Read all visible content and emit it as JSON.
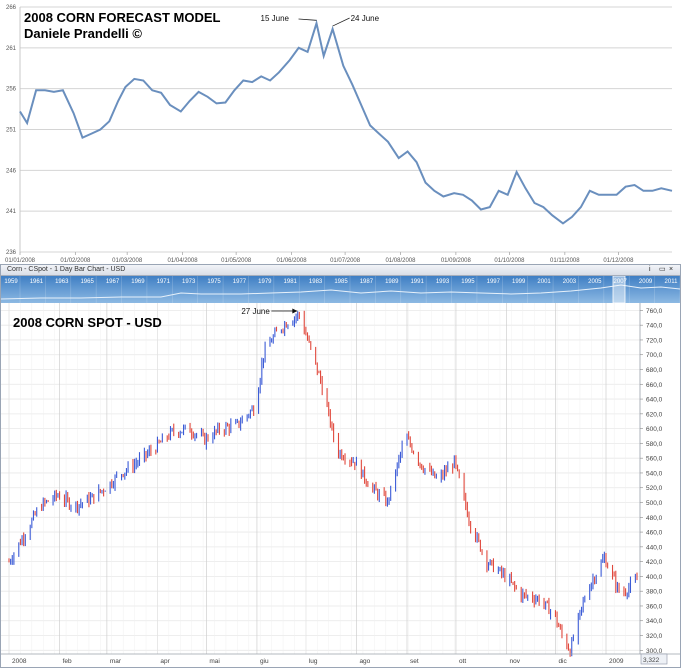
{
  "chart_data": [
    {
      "type": "line",
      "title": "2008 CORN FORECAST MODEL",
      "subtitle": "Daniele Prandelli ©",
      "ylim": [
        236,
        266
      ],
      "yticks": [
        236,
        241,
        246,
        251,
        256,
        261,
        266
      ],
      "xticks": [
        "01/01/2008",
        "01/02/2008",
        "01/03/2008",
        "01/04/2008",
        "01/05/2008",
        "01/06/2008",
        "01/07/2008",
        "01/08/2008",
        "01/09/2008",
        "01/10/2008",
        "01/11/2008",
        "01/12/2008"
      ],
      "line_color": "#6a8fbe",
      "grid": true,
      "annotations": [
        {
          "text": "15 June",
          "x": "15/06/2008",
          "y": 264.0
        },
        {
          "text": "24 June",
          "x": "24/06/2008",
          "y": 263.3
        }
      ],
      "series": [
        {
          "x": [
            "01/01/2008",
            "05/01/2008",
            "10/01/2008",
            "15/01/2008",
            "20/01/2008",
            "25/01/2008",
            "31/01/2008",
            "05/02/2008",
            "10/02/2008",
            "15/02/2008",
            "20/02/2008",
            "25/02/2008",
            "29/02/2008",
            "05/03/2008",
            "10/03/2008",
            "15/03/2008",
            "20/03/2008",
            "25/03/2008",
            "31/03/2008",
            "05/04/2008",
            "10/04/2008",
            "15/04/2008",
            "20/04/2008",
            "25/04/2008",
            "30/04/2008",
            "05/05/2008",
            "10/05/2008",
            "15/05/2008",
            "20/05/2008",
            "25/05/2008",
            "31/05/2008",
            "05/06/2008",
            "10/06/2008",
            "15/06/2008",
            "19/06/2008",
            "24/06/2008",
            "30/06/2008",
            "05/07/2008",
            "10/07/2008",
            "15/07/2008",
            "20/07/2008",
            "25/07/2008",
            "31/07/2008",
            "05/08/2008",
            "10/08/2008",
            "15/08/2008",
            "20/08/2008",
            "25/08/2008",
            "31/08/2008",
            "05/09/2008",
            "10/09/2008",
            "15/09/2008",
            "20/09/2008",
            "25/09/2008",
            "30/09/2008",
            "05/10/2008",
            "10/10/2008",
            "15/10/2008",
            "20/10/2008",
            "25/10/2008",
            "31/10/2008",
            "05/11/2008",
            "10/11/2008",
            "15/11/2008",
            "20/11/2008",
            "25/11/2008",
            "30/11/2008",
            "05/12/2008",
            "10/12/2008",
            "15/12/2008",
            "20/12/2008",
            "25/12/2008",
            "31/12/2008"
          ],
          "values": [
            253.2,
            251.8,
            255.8,
            255.8,
            255.6,
            255.8,
            253.0,
            250.0,
            250.5,
            251.0,
            252.0,
            254.5,
            256.2,
            257.2,
            257.0,
            255.8,
            255.5,
            254.0,
            253.2,
            254.5,
            255.6,
            255.0,
            254.2,
            254.3,
            255.8,
            257.0,
            256.8,
            257.5,
            257.0,
            258.0,
            259.5,
            261.0,
            260.5,
            264.0,
            260.0,
            263.3,
            258.8,
            256.5,
            254.0,
            251.5,
            250.5,
            249.5,
            247.5,
            248.3,
            247.0,
            244.5,
            243.5,
            242.8,
            243.2,
            243.0,
            242.3,
            241.2,
            241.5,
            243.5,
            243.0,
            245.8,
            243.8,
            242.0,
            241.5,
            240.5,
            239.5,
            240.3,
            241.5,
            243.5,
            243.0,
            243.0,
            243.0,
            244.0,
            244.2,
            243.5,
            243.5,
            243.8,
            243.5
          ]
        }
      ]
    },
    {
      "type": "bar",
      "chart_kind": "ohlc",
      "window_title": "Corn - CSpot - 1 Day Bar Chart - USD",
      "title": "2008 CORN SPOT - USD",
      "ylim": [
        295,
        770
      ],
      "yticks": [
        300,
        320,
        340,
        360,
        380,
        400,
        420,
        440,
        460,
        480,
        500,
        520,
        540,
        560,
        580,
        600,
        620,
        640,
        660,
        680,
        700,
        720,
        740,
        760
      ],
      "y_tick_labels": [
        "300,0",
        "320,0",
        "340,0",
        "360,0",
        "380,0",
        "400,0",
        "420,0",
        "440,0",
        "460,0",
        "480,0",
        "500,0",
        "520,0",
        "540,0",
        "560,0",
        "580,0",
        "600,0",
        "620,0",
        "640,0",
        "660,0",
        "680,0",
        "700,0",
        "720,0",
        "740,0",
        "760,0"
      ],
      "last_value_label": "3,322",
      "xticks": [
        "2008",
        "feb",
        "mar",
        "apr",
        "mai",
        "giu",
        "lug",
        "ago",
        "set",
        "ott",
        "nov",
        "dic",
        "2009"
      ],
      "navigator_years": [
        "1959",
        "1961",
        "1963",
        "1965",
        "1967",
        "1969",
        "1971",
        "1973",
        "1975",
        "1977",
        "1979",
        "1981",
        "1983",
        "1985",
        "1987",
        "1989",
        "1991",
        "1993",
        "1995",
        "1997",
        "1999",
        "2001",
        "2003",
        "2005",
        "2007",
        "2009",
        "2011"
      ],
      "colors": {
        "up": "#3b5bd6",
        "down": "#e0483c"
      },
      "grid": true,
      "annotations": [
        {
          "text": "27 June",
          "x": "27/06/2008",
          "y": 760
        }
      ],
      "series": [
        {
          "x": [
            "01/01/2008",
            "10/01/2008",
            "20/01/2008",
            "31/01/2008",
            "10/02/2008",
            "20/02/2008",
            "29/02/2008",
            "10/03/2008",
            "20/03/2008",
            "31/03/2008",
            "10/04/2008",
            "20/04/2008",
            "30/04/2008",
            "10/05/2008",
            "20/05/2008",
            "31/05/2008",
            "05/06/2008",
            "10/06/2008",
            "15/06/2008",
            "20/06/2008",
            "27/06/2008",
            "05/07/2008",
            "10/07/2008",
            "20/07/2008",
            "31/07/2008",
            "10/08/2008",
            "20/08/2008",
            "31/08/2008",
            "10/09/2008",
            "20/09/2008",
            "30/09/2008",
            "10/10/2008",
            "20/10/2008",
            "31/10/2008",
            "10/11/2008",
            "20/11/2008",
            "30/11/2008",
            "05/12/2008",
            "10/12/2008",
            "20/12/2008",
            "31/12/2008",
            "10/01/2009",
            "20/01/2009"
          ],
          "values": [
            420,
            455,
            495,
            510,
            495,
            505,
            520,
            540,
            555,
            575,
            595,
            600,
            585,
            600,
            605,
            630,
            700,
            720,
            735,
            745,
            755,
            700,
            665,
            570,
            555,
            520,
            500,
            590,
            550,
            530,
            555,
            470,
            420,
            400,
            375,
            370,
            350,
            320,
            300,
            380,
            425,
            375,
            395
          ]
        }
      ]
    }
  ]
}
